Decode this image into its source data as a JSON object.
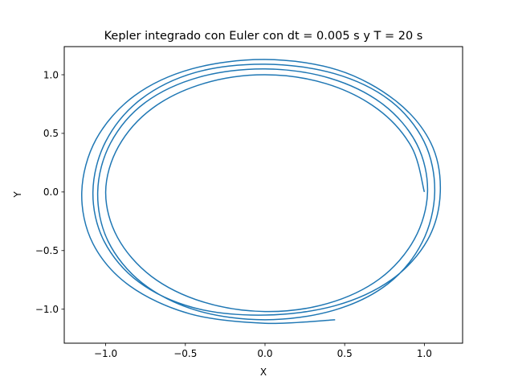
{
  "chart_data": {
    "type": "line",
    "title": "Kepler integrado con Euler con dt = 0.005 s y T = 20 s",
    "xlabel": "X",
    "ylabel": "Y",
    "xlim": [
      -1.26,
      1.24
    ],
    "ylim": [
      -1.29,
      1.24
    ],
    "xticks": [
      {
        "value": -1.0,
        "label": "−1.0"
      },
      {
        "value": -0.5,
        "label": "−0.5"
      },
      {
        "value": 0.0,
        "label": "0.0"
      },
      {
        "value": 0.5,
        "label": "0.5"
      },
      {
        "value": 1.0,
        "label": "1.0"
      }
    ],
    "yticks": [
      {
        "value": -1.0,
        "label": "−1.0"
      },
      {
        "value": -0.5,
        "label": "−0.5"
      },
      {
        "value": 0.0,
        "label": "0.0"
      },
      {
        "value": 0.5,
        "label": "0.5"
      },
      {
        "value": 1.0,
        "label": "1.0"
      }
    ],
    "grid": false,
    "line_color": "#1f77b4",
    "series": [
      {
        "x": [
          1.0,
          0.92,
          0.707,
          0.383,
          0.0,
          -0.383,
          -0.707,
          -0.92,
          -1.0,
          -0.926,
          -0.714,
          -0.391,
          0.0,
          0.391,
          0.719,
          0.937,
          1.02,
          0.953,
          0.74,
          0.408,
          0.0,
          -0.412,
          -0.753,
          -0.97,
          -1.05,
          -0.985,
          -0.77,
          -0.43,
          0.0,
          0.43,
          0.77,
          0.986,
          1.065,
          0.998,
          0.78,
          0.435,
          0.0,
          -0.435,
          -0.78,
          -1.0,
          -1.08,
          -1.01,
          -0.79,
          -0.44,
          0.0,
          0.44,
          0.792,
          1.02,
          1.1,
          1.04,
          0.818,
          0.458,
          0.0,
          -0.46,
          -0.82,
          -1.06,
          -1.15,
          -1.08,
          -0.85,
          -0.47,
          0.0,
          0.44
        ],
        "y": [
          0.0,
          0.383,
          0.707,
          0.924,
          1.0,
          0.926,
          0.714,
          0.387,
          0.0,
          -0.387,
          -0.719,
          -0.937,
          -1.02,
          -0.952,
          -0.741,
          -0.404,
          0.0,
          0.407,
          0.748,
          0.97,
          1.05,
          0.98,
          0.762,
          0.416,
          0.0,
          -0.42,
          -0.777,
          -1.01,
          -1.09,
          -1.01,
          -0.785,
          -0.43,
          0.0,
          0.43,
          0.785,
          1.01,
          1.09,
          1.02,
          0.79,
          0.43,
          0.0,
          -0.42,
          -0.77,
          -0.99,
          -1.05,
          -0.97,
          -0.75,
          -0.41,
          0.0,
          0.42,
          0.78,
          1.04,
          1.13,
          1.05,
          0.82,
          0.45,
          0.0,
          -0.44,
          -0.8,
          -1.04,
          -1.12,
          -1.09
        ]
      }
    ]
  }
}
